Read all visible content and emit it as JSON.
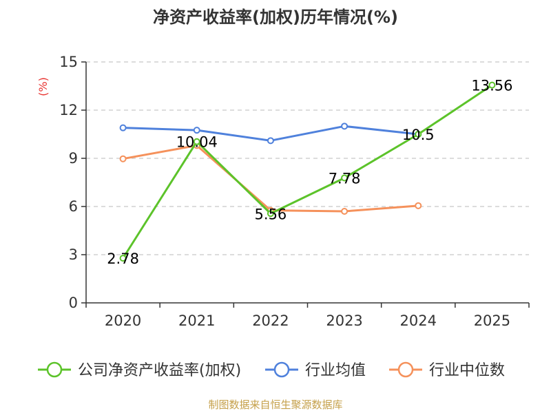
{
  "chart_data": {
    "type": "line",
    "title": "净资产收益率(加权)历年情况(%)",
    "ylabel": "(%)",
    "xlabel": "",
    "ylim": [
      0,
      15
    ],
    "yticks": [
      0,
      3,
      6,
      9,
      12,
      15
    ],
    "grid": true,
    "legend_position": "bottom",
    "categories": [
      "2020",
      "2021",
      "2022",
      "2023",
      "2024",
      "2025"
    ],
    "series": [
      {
        "name": "公司净资产收益率(加权)",
        "color": "#5cc32a",
        "values": [
          2.78,
          10.04,
          5.56,
          7.78,
          10.5,
          13.56
        ],
        "labels": [
          "2.78",
          "10.04",
          "5.56",
          "7.78",
          "10.5",
          "13.56"
        ]
      },
      {
        "name": "行业均值",
        "color": "#4f81dc",
        "values": [
          10.9,
          10.75,
          10.1,
          11.0,
          10.5,
          null
        ]
      },
      {
        "name": "行业中位数",
        "color": "#f5915b",
        "values": [
          8.97,
          9.8,
          5.76,
          5.7,
          6.05,
          null
        ]
      }
    ],
    "source": "制图数据来自恒生聚源数据库"
  }
}
